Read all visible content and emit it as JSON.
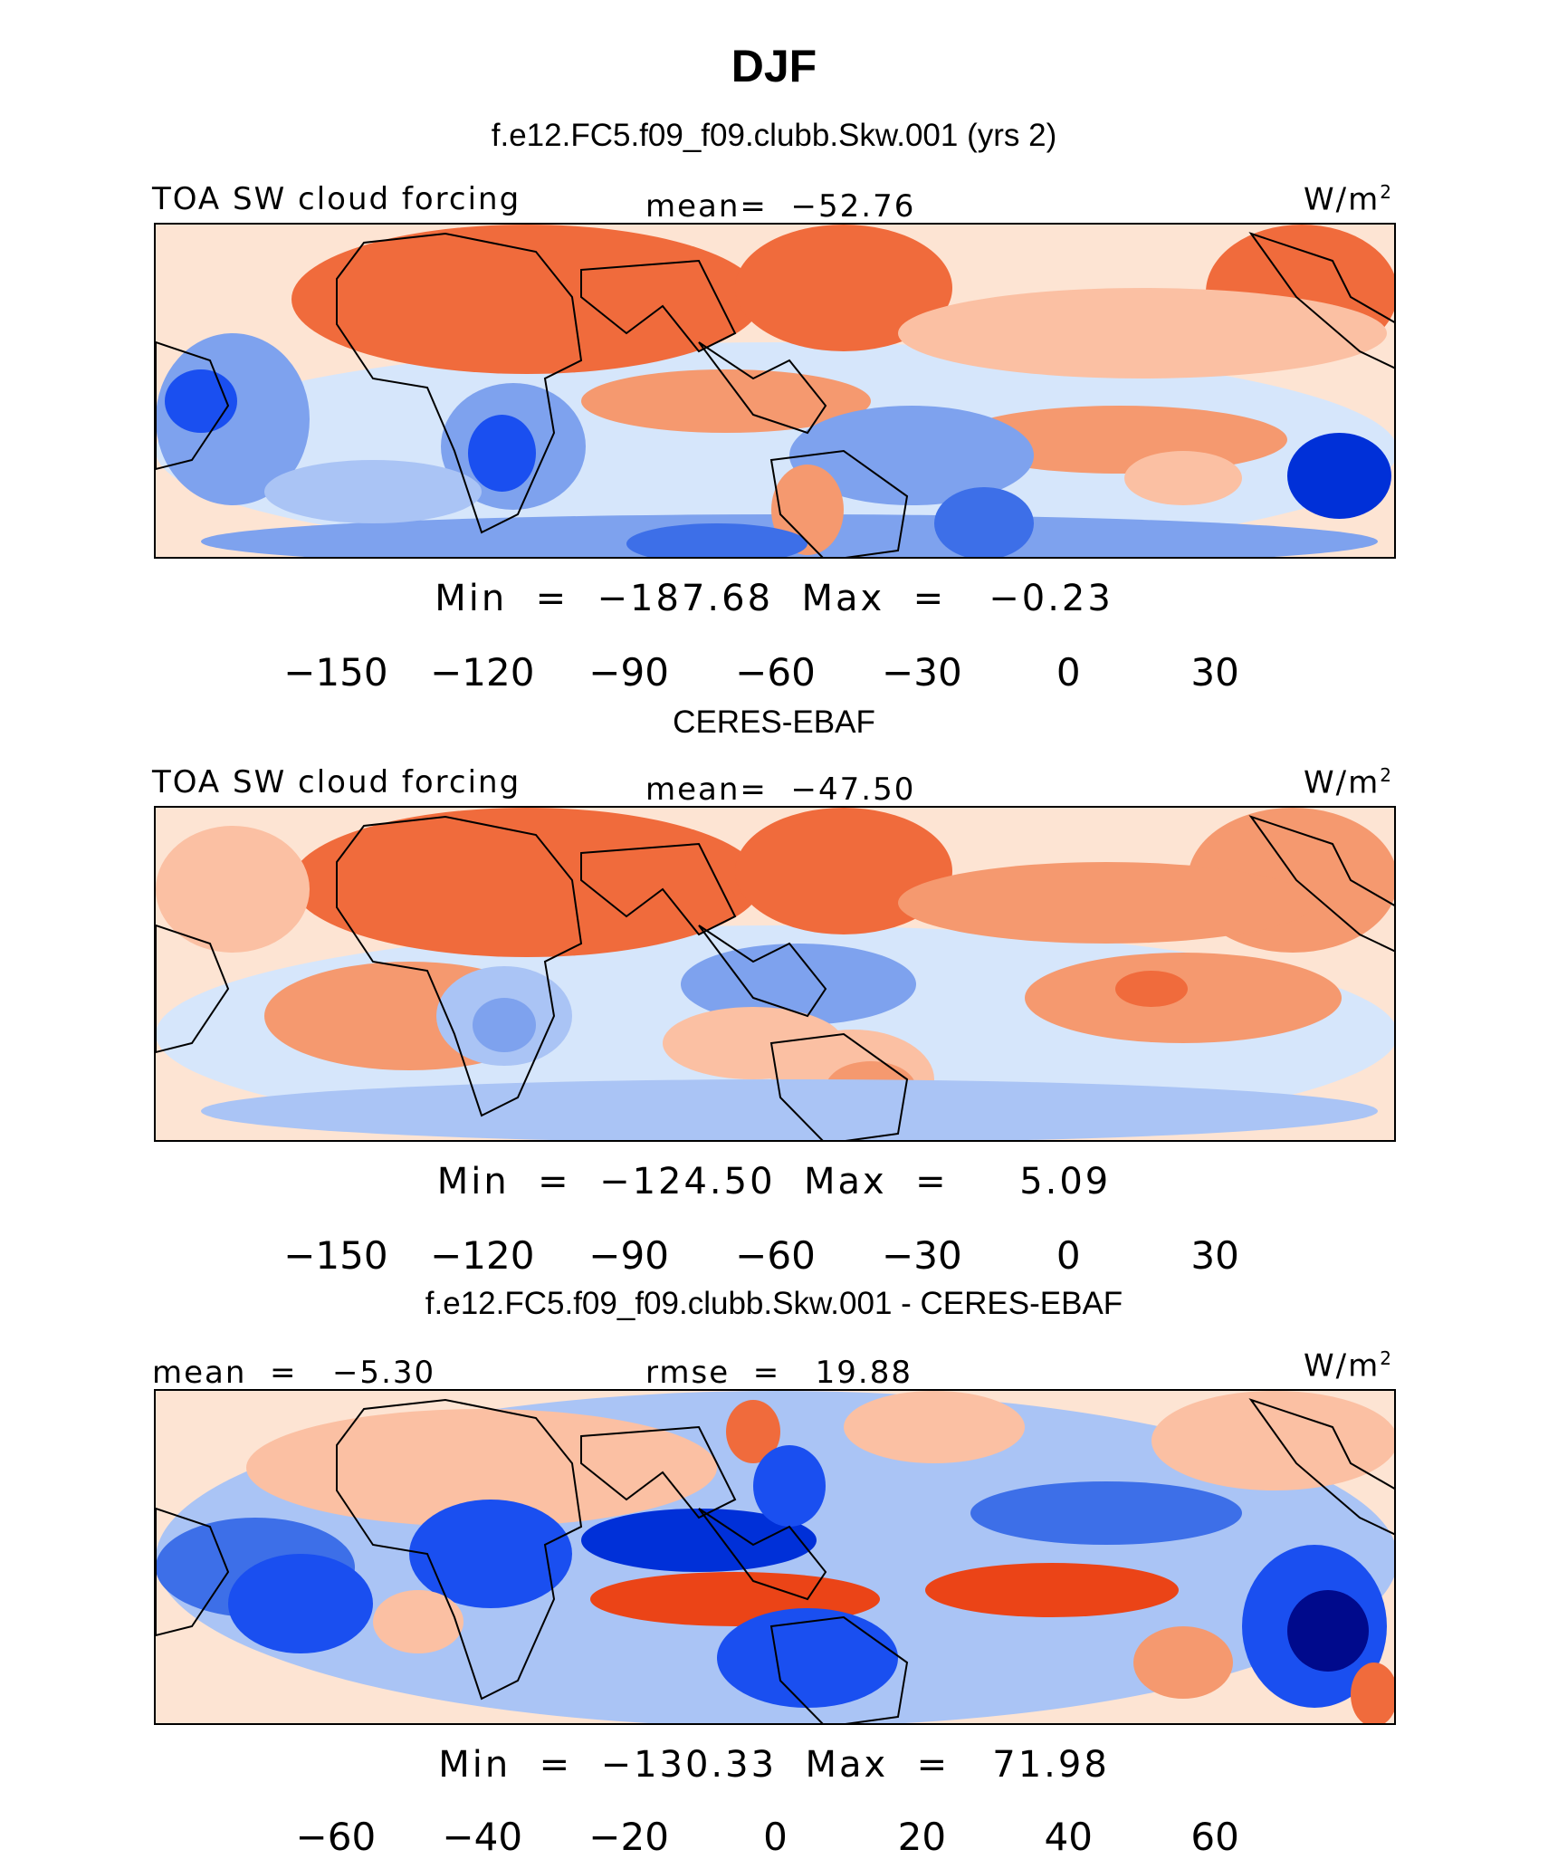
{
  "page": {
    "title": "DJF",
    "panel1_title": "f.e12.FC5.f09_f09.clubb.Skw.001 (yrs 2)",
    "panel2_title": "CERES-EBAF",
    "panel3_title": "f.e12.FC5.f09_f09.clubb.Skw.001 - CERES-EBAF"
  },
  "chart_data": [
    {
      "type": "heatmap",
      "name": "model",
      "title": "f.e12.FC5.f09_f09.clubb.Skw.001 (yrs 2)",
      "left_label": "TOA SW cloud forcing",
      "center_label": "mean=  −52.76",
      "units_base": "W/m",
      "units_exp": "2",
      "min_max": "Min  =  −187.68  Max  =   −0.23",
      "min": -187.68,
      "max": -0.23,
      "mean": -52.76,
      "colorbar_levels": [
        -165,
        -150,
        -135,
        -120,
        -105,
        -90,
        -75,
        -60,
        -45,
        -30,
        -15,
        0,
        15,
        30,
        45
      ],
      "colorbar_tick_labels": [
        "−150",
        "−120",
        "−90",
        "−60",
        "−30",
        "0",
        "30"
      ],
      "colorbar_colors": [
        "#000a8c",
        "#0020b8",
        "#0030d8",
        "#1a4ff0",
        "#3d6fe8",
        "#7ea2ee",
        "#aac4f5",
        "#d6e6fb",
        "#fde4d3",
        "#fbc0a3",
        "#f5996f",
        "#f06b3c",
        "#eb4417",
        "#d22b0a",
        "#a51a0a",
        "#7a0505"
      ]
    },
    {
      "type": "heatmap",
      "name": "observations",
      "title": "CERES-EBAF",
      "left_label": "TOA SW cloud forcing",
      "center_label": "mean=  −47.50",
      "units_base": "W/m",
      "units_exp": "2",
      "min_max": "Min  =  −124.50  Max  =     5.09",
      "min": -124.5,
      "max": 5.09,
      "mean": -47.5,
      "colorbar_levels": [
        -165,
        -150,
        -135,
        -120,
        -105,
        -90,
        -75,
        -60,
        -45,
        -30,
        -15,
        0,
        15,
        30,
        45
      ],
      "colorbar_tick_labels": [
        "−150",
        "−120",
        "−90",
        "−60",
        "−30",
        "0",
        "30"
      ],
      "colorbar_colors": [
        "#000a8c",
        "#0020b8",
        "#0030d8",
        "#1a4ff0",
        "#3d6fe8",
        "#7ea2ee",
        "#aac4f5",
        "#d6e6fb",
        "#fde4d3",
        "#fbc0a3",
        "#f5996f",
        "#f06b3c",
        "#eb4417",
        "#d22b0a",
        "#a51a0a",
        "#7a0505"
      ]
    },
    {
      "type": "heatmap",
      "name": "difference",
      "title": "f.e12.FC5.f09_f09.clubb.Skw.001 - CERES-EBAF",
      "left_label": "mean  =   −5.30",
      "center_label": "rmse  =   19.88",
      "units_base": "W/m",
      "units_exp": "2",
      "min_max": "Min  =  −130.33  Max  =   71.98",
      "min": -130.33,
      "max": 71.98,
      "mean": -5.3,
      "rmse": 19.88,
      "colorbar_levels": [
        -70,
        -60,
        -50,
        -40,
        -30,
        -20,
        -10,
        0,
        10,
        20,
        30,
        40,
        50,
        60,
        70
      ],
      "colorbar_tick_labels": [
        "−60",
        "−40",
        "−20",
        "0",
        "20",
        "40",
        "60"
      ],
      "colorbar_colors": [
        "#000a8c",
        "#0020b8",
        "#0030d8",
        "#1a4ff0",
        "#3d6fe8",
        "#7ea2ee",
        "#aac4f5",
        "#d6e6fb",
        "#fde4d3",
        "#fbc0a3",
        "#f5996f",
        "#f06b3c",
        "#eb4417",
        "#d22b0a",
        "#a51a0a",
        "#7a0505"
      ]
    }
  ]
}
